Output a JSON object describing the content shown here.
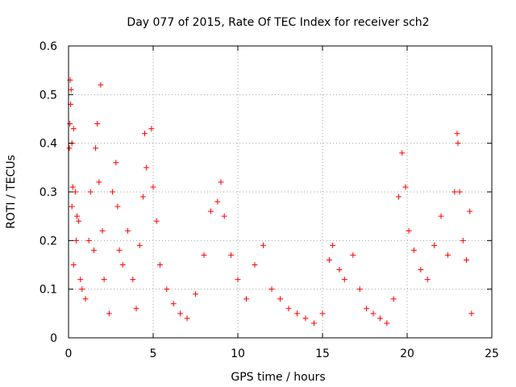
{
  "chart_data": {
    "type": "scatter",
    "title": "Day 077 of 2015, Rate Of TEC Index for receiver sch2",
    "xlabel": "GPS time / hours",
    "ylabel": "ROTI / TECUs",
    "xlim": [
      0,
      25
    ],
    "ylim": [
      0,
      0.6
    ],
    "x_ticks": [
      0,
      5,
      10,
      15,
      20,
      25
    ],
    "y_ticks": [
      0,
      0.1,
      0.2,
      0.3,
      0.4,
      0.5,
      0.6
    ],
    "x_tick_labels": [
      "0",
      "5",
      "10",
      "15",
      "20",
      "25"
    ],
    "y_tick_labels": [
      "0",
      "0.1",
      "0.2",
      "0.3",
      "0.4",
      "0.5",
      "0.6"
    ],
    "grid": true,
    "marker": "+",
    "series": [
      {
        "name": "ROTI",
        "color": "#ff0000",
        "points": [
          [
            0.1,
            0.53
          ],
          [
            0.15,
            0.51
          ],
          [
            0.12,
            0.48
          ],
          [
            0.08,
            0.44
          ],
          [
            0.2,
            0.4
          ],
          [
            0.05,
            0.39
          ],
          [
            0.3,
            0.43
          ],
          [
            0.25,
            0.31
          ],
          [
            0.4,
            0.3
          ],
          [
            0.2,
            0.27
          ],
          [
            0.5,
            0.25
          ],
          [
            0.6,
            0.24
          ],
          [
            0.45,
            0.2
          ],
          [
            0.3,
            0.15
          ],
          [
            0.7,
            0.12
          ],
          [
            0.8,
            0.1
          ],
          [
            1.0,
            0.08
          ],
          [
            1.2,
            0.2
          ],
          [
            1.3,
            0.3
          ],
          [
            1.5,
            0.18
          ],
          [
            1.6,
            0.39
          ],
          [
            1.7,
            0.44
          ],
          [
            1.8,
            0.32
          ],
          [
            1.9,
            0.52
          ],
          [
            2.0,
            0.22
          ],
          [
            2.1,
            0.12
          ],
          [
            2.4,
            0.05
          ],
          [
            2.6,
            0.3
          ],
          [
            2.8,
            0.36
          ],
          [
            2.9,
            0.27
          ],
          [
            3.0,
            0.18
          ],
          [
            3.2,
            0.15
          ],
          [
            3.5,
            0.22
          ],
          [
            3.8,
            0.12
          ],
          [
            4.0,
            0.06
          ],
          [
            4.2,
            0.19
          ],
          [
            4.4,
            0.29
          ],
          [
            4.6,
            0.35
          ],
          [
            4.5,
            0.42
          ],
          [
            4.9,
            0.43
          ],
          [
            5.0,
            0.31
          ],
          [
            5.2,
            0.24
          ],
          [
            5.4,
            0.15
          ],
          [
            5.8,
            0.1
          ],
          [
            6.2,
            0.07
          ],
          [
            6.6,
            0.05
          ],
          [
            7.0,
            0.04
          ],
          [
            7.5,
            0.09
          ],
          [
            8.0,
            0.17
          ],
          [
            8.4,
            0.26
          ],
          [
            8.8,
            0.28
          ],
          [
            9.0,
            0.32
          ],
          [
            9.2,
            0.25
          ],
          [
            9.6,
            0.17
          ],
          [
            10.0,
            0.12
          ],
          [
            10.5,
            0.08
          ],
          [
            11.0,
            0.15
          ],
          [
            11.5,
            0.19
          ],
          [
            12.0,
            0.1
          ],
          [
            12.5,
            0.08
          ],
          [
            13.0,
            0.06
          ],
          [
            13.5,
            0.05
          ],
          [
            14.0,
            0.04
          ],
          [
            14.5,
            0.03
          ],
          [
            15.0,
            0.05
          ],
          [
            15.4,
            0.16
          ],
          [
            15.6,
            0.19
          ],
          [
            16.0,
            0.14
          ],
          [
            16.3,
            0.12
          ],
          [
            16.8,
            0.17
          ],
          [
            17.2,
            0.1
          ],
          [
            17.6,
            0.06
          ],
          [
            18.0,
            0.05
          ],
          [
            18.4,
            0.04
          ],
          [
            18.8,
            0.03
          ],
          [
            19.2,
            0.08
          ],
          [
            19.5,
            0.29
          ],
          [
            19.7,
            0.38
          ],
          [
            19.9,
            0.31
          ],
          [
            20.1,
            0.22
          ],
          [
            20.4,
            0.18
          ],
          [
            20.8,
            0.14
          ],
          [
            21.2,
            0.12
          ],
          [
            21.6,
            0.19
          ],
          [
            22.0,
            0.25
          ],
          [
            22.4,
            0.17
          ],
          [
            22.8,
            0.3
          ],
          [
            22.95,
            0.42
          ],
          [
            23.0,
            0.4
          ],
          [
            23.1,
            0.3
          ],
          [
            23.3,
            0.2
          ],
          [
            23.5,
            0.16
          ],
          [
            23.7,
            0.26
          ],
          [
            23.8,
            0.05
          ]
        ]
      }
    ]
  }
}
